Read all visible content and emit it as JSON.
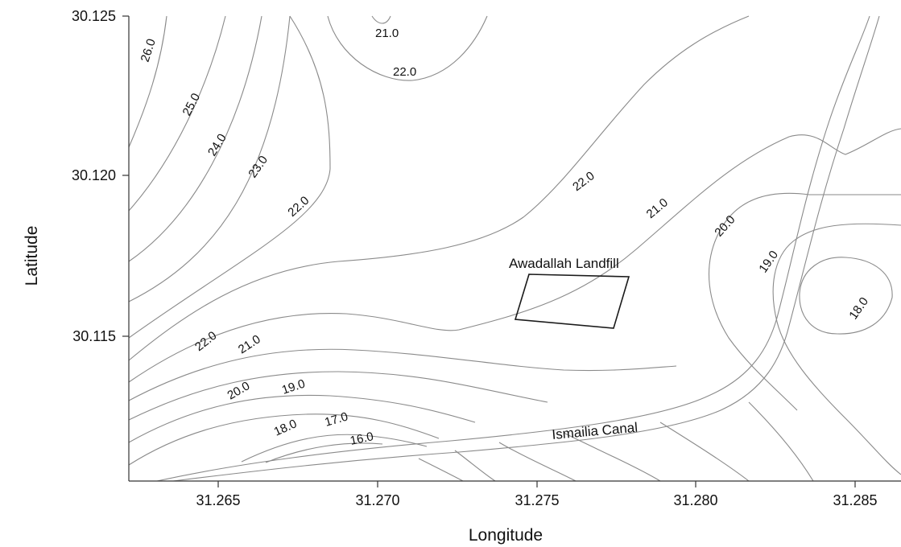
{
  "axes": {
    "x_title": "Longitude",
    "y_title": "Latitude",
    "x_ticks": [
      "31.265",
      "31.270",
      "31.275",
      "31.280",
      "31.285"
    ],
    "y_ticks": [
      "30.125",
      "30.120",
      "30.115"
    ]
  },
  "features": {
    "landfill_label": "Awadallah Landfill",
    "canal_label": "Ismailia Canal"
  },
  "contour_labels": [
    "26.0",
    "25.0",
    "24.0",
    "23.0",
    "22.0",
    "21.0",
    "22.0",
    "22.0",
    "21.0",
    "20.0",
    "19.0",
    "18.0",
    "22.0",
    "21.0",
    "20.0",
    "19.0",
    "18.0",
    "17.0",
    "16.0"
  ],
  "colors": {
    "contour": "#8a8a8a",
    "outline": "#1a1a1a"
  }
}
